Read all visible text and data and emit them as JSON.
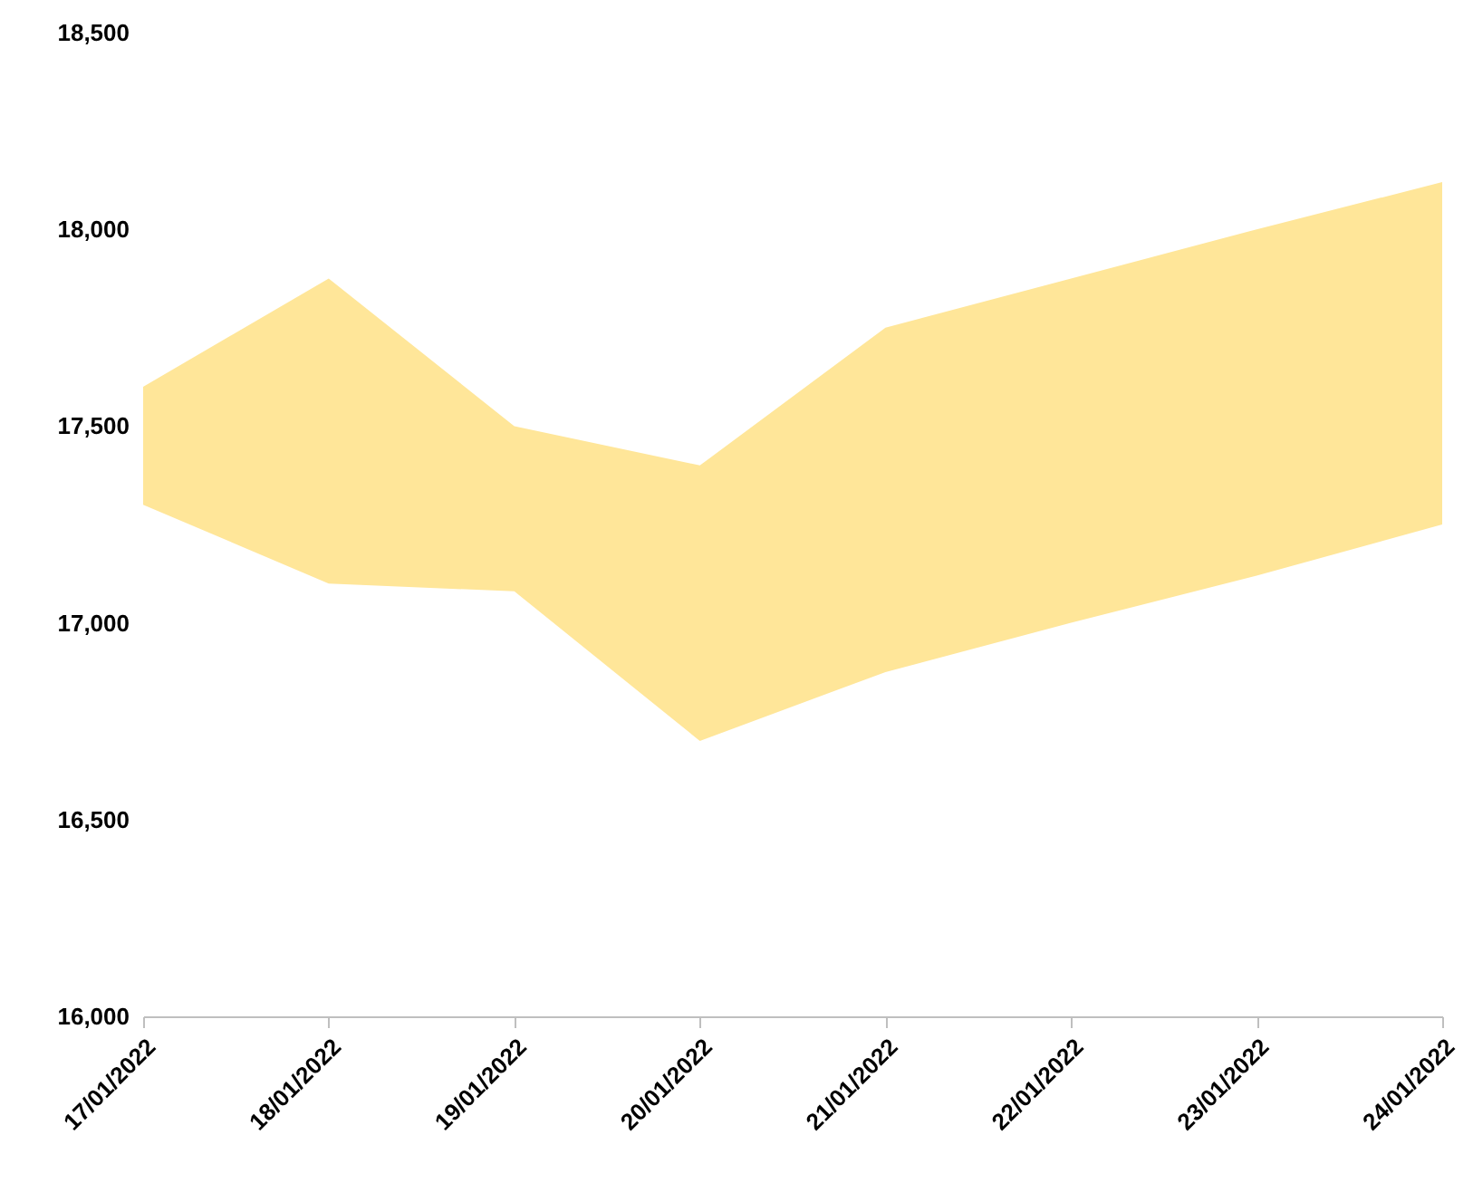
{
  "chart_data": {
    "type": "area",
    "categories": [
      "17/01/2022",
      "18/01/2022",
      "19/01/2022",
      "20/01/2022",
      "21/01/2022",
      "22/01/2022",
      "23/01/2022",
      "24/01/2022"
    ],
    "series": [
      {
        "color": "#ffe699",
        "values": [
          null,
          null,
          null,
          null,
          null,
          null,
          null,
          null
        ],
        "upper": [
          17600,
          17875,
          17500,
          17400,
          17750,
          17875,
          18000,
          18120
        ],
        "lower": [
          17300,
          17100,
          17080,
          16700,
          16875,
          17000,
          17120,
          17250
        ]
      }
    ],
    "ylim": [
      16000,
      18500
    ],
    "yticks": [
      {
        "value": 16000,
        "label": "16,000"
      },
      {
        "value": 16500,
        "label": "16,500"
      },
      {
        "value": 17000,
        "label": "17,000"
      },
      {
        "value": 17500,
        "label": "17,500"
      },
      {
        "value": 18000,
        "label": "18,000"
      },
      {
        "value": 18500,
        "label": "18,500"
      }
    ],
    "grid": false
  }
}
